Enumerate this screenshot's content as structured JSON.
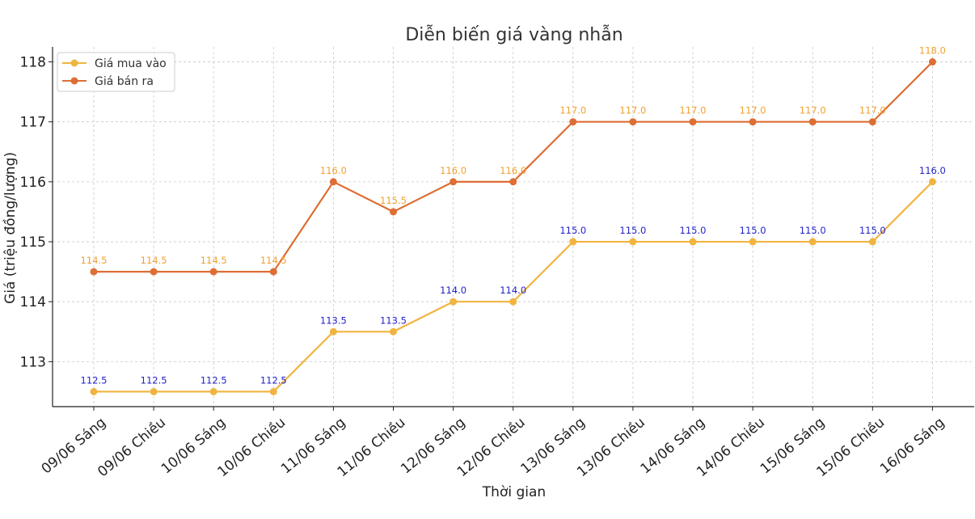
{
  "chart_data": {
    "type": "line",
    "title": "Diễn biến giá vàng nhẫn",
    "xlabel": "Thời gian",
    "ylabel": "Giá (triệu đồng/lượng)",
    "categories": [
      "09/06 Sáng",
      "09/06 Chiều",
      "10/06 Sáng",
      "10/06 Chiều",
      "11/06 Sáng",
      "11/06 Chiều",
      "12/06 Sáng",
      "12/06 Chiều",
      "13/06 Sáng",
      "13/06 Chiều",
      "14/06 Sáng",
      "14/06 Chiều",
      "15/06 Sáng",
      "15/06 Chiều",
      "16/06 Sáng"
    ],
    "series": [
      {
        "name": "Giá mua vào",
        "color": "#f0b440",
        "label_color": "#1f1fc8",
        "values": [
          112.5,
          112.5,
          112.5,
          112.5,
          113.5,
          113.5,
          114.0,
          114.0,
          115.0,
          115.0,
          115.0,
          115.0,
          115.0,
          115.0,
          116.0
        ],
        "labels": [
          "112.5",
          "112.5",
          "112.5",
          "112.5",
          "113.5",
          "113.5",
          "114.0",
          "114.0",
          "115.0",
          "115.0",
          "115.0",
          "115.0",
          "115.0",
          "115.0",
          "116.0"
        ]
      },
      {
        "name": "Giá bán ra",
        "color": "#dd6e35",
        "label_color": "#f0a030",
        "values": [
          114.5,
          114.5,
          114.5,
          114.5,
          116.0,
          115.5,
          116.0,
          116.0,
          117.0,
          117.0,
          117.0,
          117.0,
          117.0,
          117.0,
          118.0
        ],
        "labels": [
          "114.5",
          "114.5",
          "114.5",
          "114.5",
          "116.0",
          "115.5",
          "116.0",
          "116.0",
          "117.0",
          "117.0",
          "117.0",
          "117.0",
          "117.0",
          "117.0",
          "118.0"
        ]
      }
    ],
    "yticks": [
      113,
      114,
      115,
      116,
      117,
      118
    ],
    "ytick_labels": [
      "113",
      "114",
      "115",
      "116",
      "117",
      "118"
    ],
    "ylim": [
      112.25,
      118.25
    ],
    "grid": true,
    "legend_position": "top-left"
  }
}
